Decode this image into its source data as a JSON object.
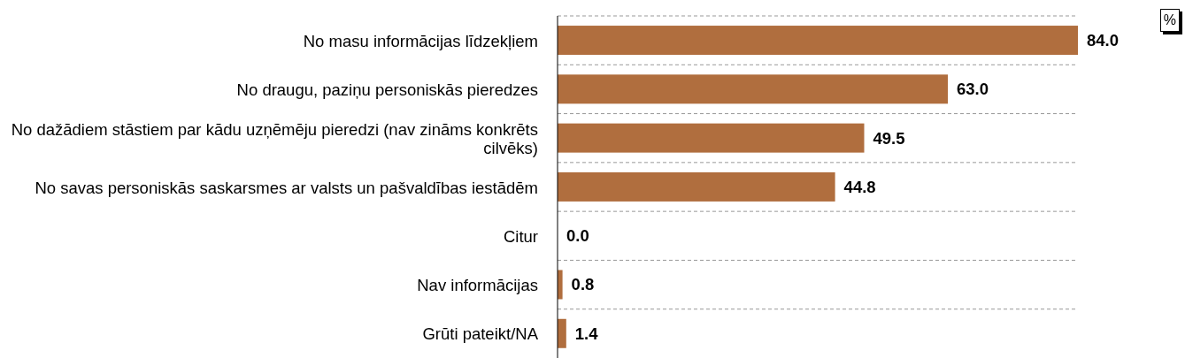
{
  "chart_data": {
    "type": "bar",
    "orientation": "horizontal",
    "tick_labels": "y",
    "data_labels": true,
    "categories": [
      "No masu informācijas līdzekļiem",
      "No draugu, paziņu personiskās pieredzes",
      "No dažādiem stāstiem par kādu uzņēmēju pieredzi (nav zināms konkrēts cilvēks)",
      "No savas personiskās saskarsmes ar valsts un pašvaldības iestādēm",
      "Citur",
      "Nav informācijas",
      "Grūti pateikt/NA"
    ],
    "values": [
      84.0,
      63.0,
      49.5,
      44.8,
      0.0,
      0.8,
      1.4
    ],
    "value_labels": [
      "84.0",
      "63.0",
      "49.5",
      "44.8",
      "0.0",
      "0.8",
      "1.4"
    ],
    "color": "#b06e3e",
    "grid": "y",
    "annotations": [
      "%"
    ]
  }
}
